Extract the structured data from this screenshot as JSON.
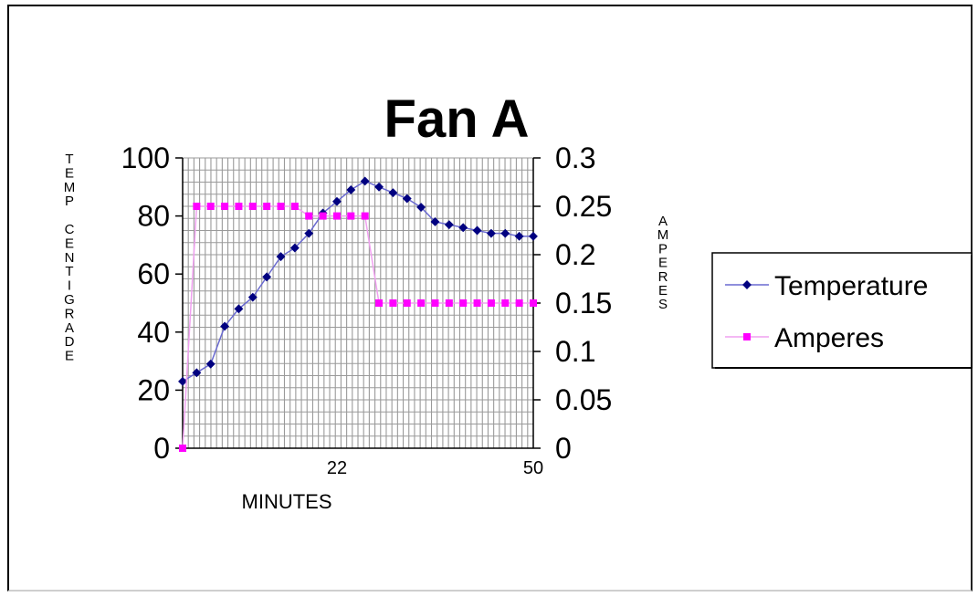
{
  "chart_data": {
    "type": "line",
    "title": "Fan A",
    "xlabel": "MINUTES",
    "ylabel_left": "TEMP CENTIGRADE",
    "ylabel_right": "AMPERES",
    "x_tick_labels": [
      {
        "x": 22,
        "label": "22"
      },
      {
        "x": 50,
        "label": "50"
      }
    ],
    "y_left": {
      "min": 0,
      "max": 100,
      "ticks": [
        0,
        20,
        40,
        60,
        80,
        100
      ]
    },
    "y_right": {
      "min": 0,
      "max": 0.3,
      "ticks": [
        0,
        0.05,
        0.1,
        0.15,
        0.2,
        0.25,
        0.3
      ],
      "tick_labels": [
        "0",
        "0.05",
        "0.1",
        "0.15",
        "0.2",
        "0.25",
        "0.3"
      ]
    },
    "x_range": [
      0,
      50
    ],
    "grid": true,
    "legend_position": "right",
    "series": [
      {
        "name": "Temperature",
        "axis": "left",
        "color": "#000080",
        "marker": "diamond",
        "x": [
          0,
          2,
          4,
          6,
          8,
          10,
          12,
          14,
          16,
          18,
          20,
          22,
          24,
          26,
          28,
          30,
          32,
          34,
          36,
          38,
          40,
          42,
          44,
          46,
          48,
          50
        ],
        "y": [
          23,
          26,
          29,
          42,
          48,
          52,
          59,
          66,
          69,
          74,
          81,
          85,
          89,
          92,
          90,
          88,
          86,
          83,
          78,
          77,
          76,
          75,
          74,
          74,
          73,
          73
        ]
      },
      {
        "name": "Amperes",
        "axis": "right",
        "color": "#ff00ff",
        "marker": "square",
        "x": [
          0,
          2,
          4,
          6,
          8,
          10,
          12,
          14,
          16,
          18,
          20,
          22,
          24,
          26,
          28,
          30,
          32,
          34,
          36,
          38,
          40,
          42,
          44,
          46,
          48,
          50
        ],
        "y": [
          0,
          0.25,
          0.25,
          0.25,
          0.25,
          0.25,
          0.25,
          0.25,
          0.25,
          0.24,
          0.24,
          0.24,
          0.24,
          0.24,
          0.15,
          0.15,
          0.15,
          0.15,
          0.15,
          0.15,
          0.15,
          0.15,
          0.15,
          0.15,
          0.15,
          0.15
        ]
      }
    ]
  }
}
